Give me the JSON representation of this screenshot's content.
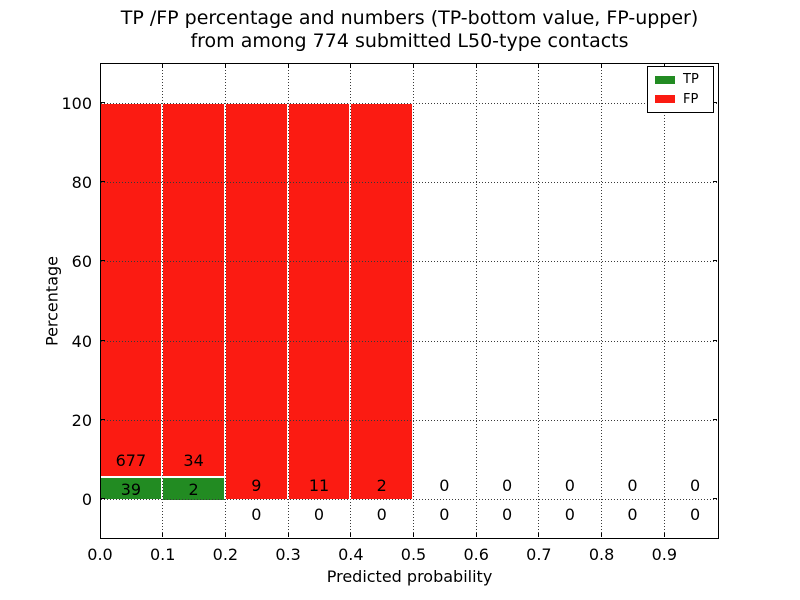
{
  "chart_data": {
    "type": "bar",
    "stacked": true,
    "title_lines": [
      "TP /FP percentage and numbers (TP-bottom value, FP-upper)",
      "from among 774 submitted L50-type contacts"
    ],
    "xlabel": "Predicted probability",
    "ylabel": "Percentage",
    "total_submitted": 774,
    "bin_width": 0.1,
    "categories": [
      "0.0-0.1",
      "0.1-0.2",
      "0.2-0.3",
      "0.3-0.4",
      "0.4-0.5",
      "0.5-0.6",
      "0.6-0.7",
      "0.7-0.8",
      "0.8-0.9",
      "0.9-1.0"
    ],
    "x_ticks": [
      0.0,
      0.1,
      0.2,
      0.3,
      0.4,
      0.5,
      0.6,
      0.7,
      0.8,
      0.9
    ],
    "x_tick_labels": [
      "0.0",
      "0.1",
      "0.2",
      "0.3",
      "0.4",
      "0.5",
      "0.6",
      "0.7",
      "0.8",
      "0.9"
    ],
    "y_ticks": [
      0,
      20,
      40,
      60,
      80,
      100
    ],
    "xlim": [
      0.0,
      0.987
    ],
    "ylim": [
      -10.7,
      110.2
    ],
    "grid": true,
    "grid_linestyle": "dotted",
    "series": [
      {
        "name": "TP",
        "color": "#228b22",
        "counts": [
          39,
          2,
          0,
          0,
          0,
          0,
          0,
          0,
          0,
          0
        ],
        "pct": [
          5.45,
          5.56,
          0,
          0,
          0,
          0,
          0,
          0,
          0,
          0
        ]
      },
      {
        "name": "FP",
        "color": "#fb1b12",
        "counts": [
          677,
          34,
          9,
          11,
          2,
          0,
          0,
          0,
          0,
          0
        ],
        "pct": [
          94.55,
          94.44,
          100,
          100,
          100,
          0,
          0,
          0,
          0,
          0
        ]
      }
    ],
    "bar_edge_color": "#ffffff",
    "legend": {
      "position": "upper right",
      "entries": [
        {
          "label": "TP",
          "color": "#228b22"
        },
        {
          "label": "FP",
          "color": "#fb1b12"
        }
      ]
    }
  }
}
